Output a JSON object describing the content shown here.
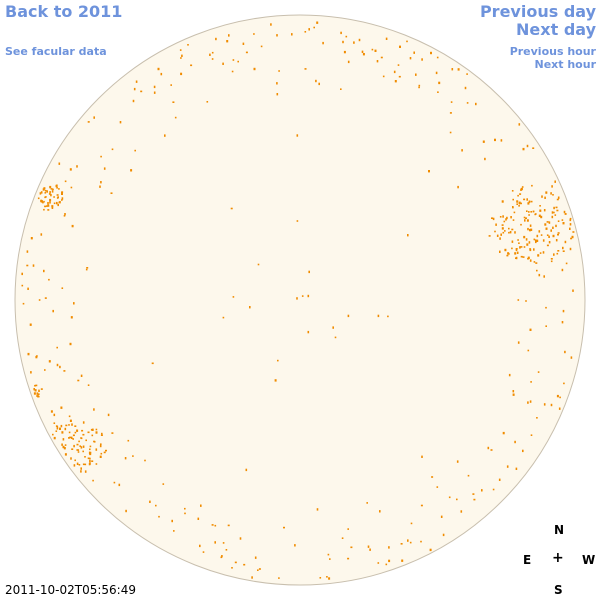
{
  "nav": {
    "back_label": "Back to 2011",
    "facular_label": "See facular data",
    "prev_day_label": "Previous day",
    "next_day_label": "Next day",
    "prev_hour_label": "Previous hour",
    "next_hour_label": "Next hour"
  },
  "timestamp": "2011-10-02T05:56:49",
  "compass": {
    "north": "N",
    "south": "S",
    "east": "E",
    "west": "W",
    "center": "+"
  },
  "colors": {
    "disk_fill": "#fdf8ec",
    "disk_edge": "#c8bfae",
    "faculae": "#f08c00",
    "link": "#6e93dc"
  }
}
